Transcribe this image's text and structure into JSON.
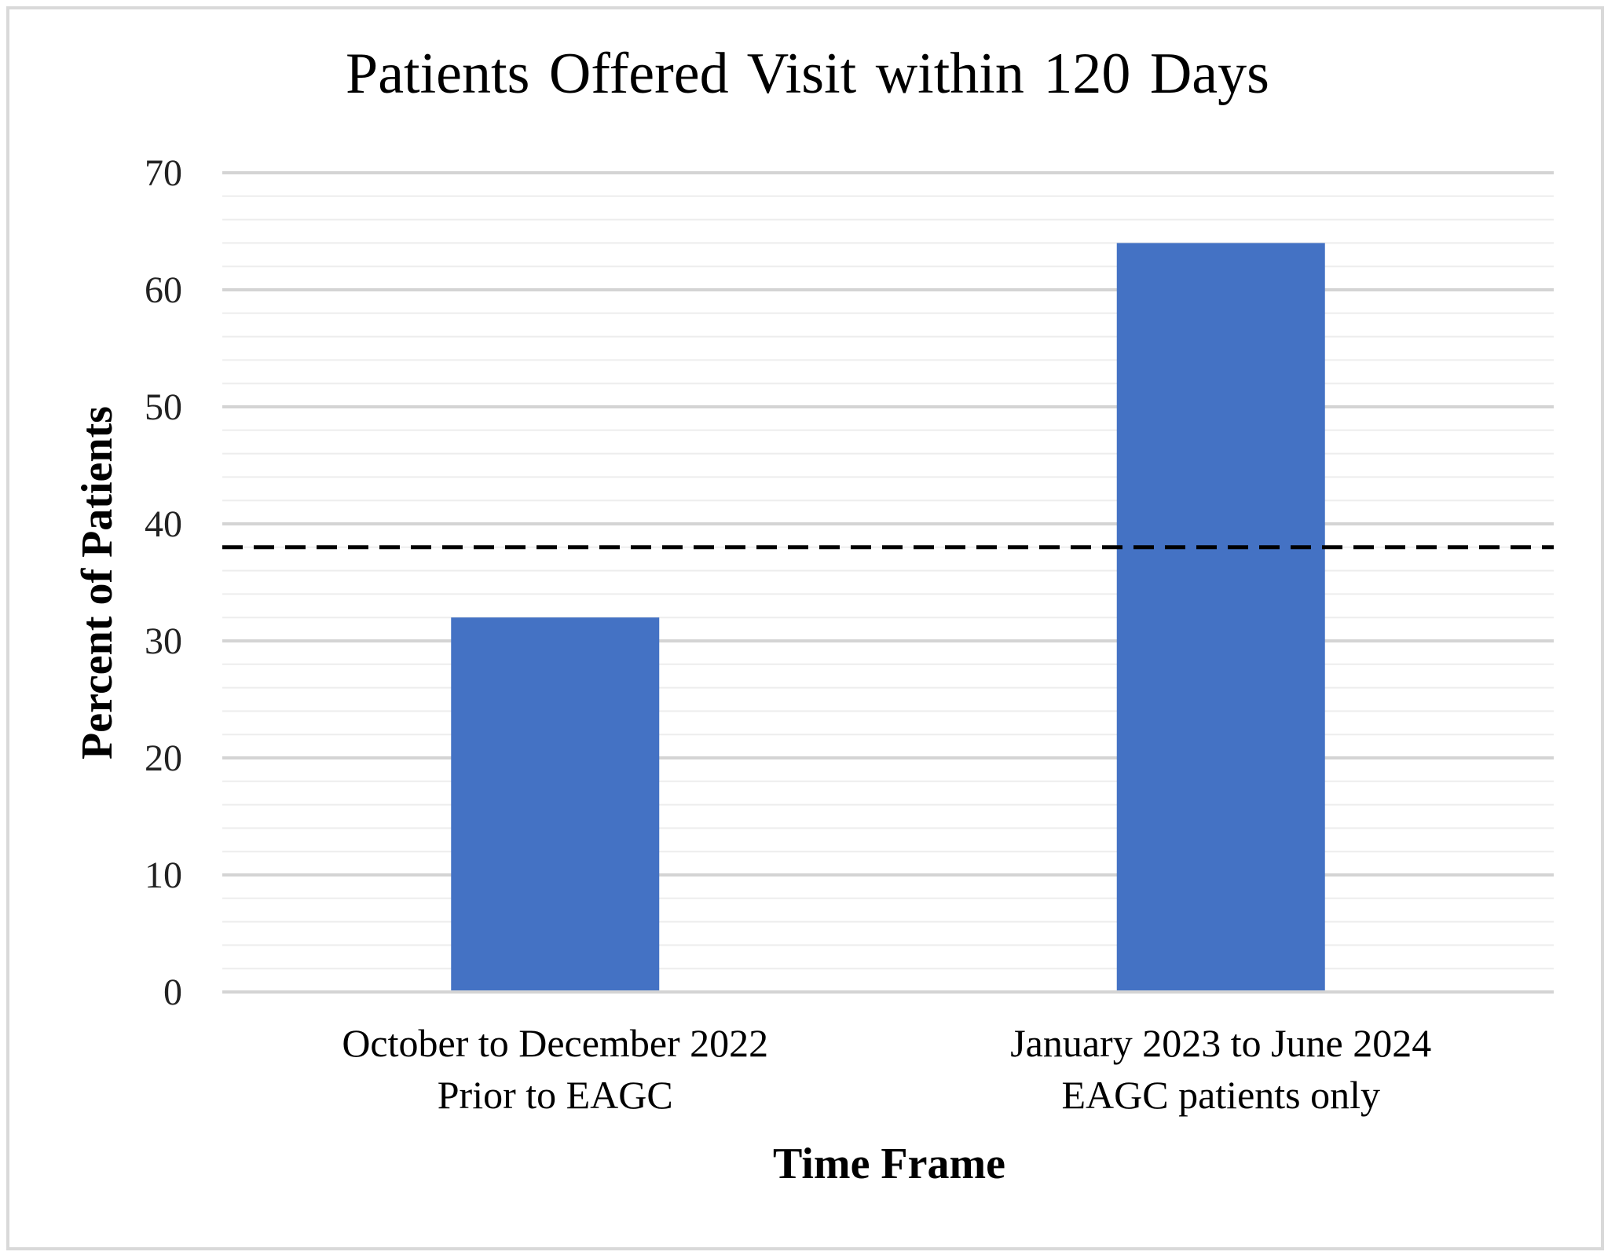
{
  "chart_data": {
    "type": "bar",
    "title": "Patients Offered Visit within 120 Days",
    "xlabel": "Time Frame",
    "ylabel": "Percent of Patients",
    "categories": [
      [
        "October to December 2022",
        "Prior to EAGC"
      ],
      [
        "January 2023 to June 2024",
        "EAGC patients only"
      ]
    ],
    "values": [
      32,
      64
    ],
    "ylim": [
      0,
      70
    ],
    "yticks": [
      0,
      10,
      20,
      30,
      40,
      50,
      60,
      70
    ],
    "minor_step": 2,
    "reference_line": 38,
    "grid": true,
    "legend": "none",
    "colors": {
      "bar": "#4472c4",
      "major_grid": "#d4d4d4",
      "minor_grid": "#ededed",
      "reference_line": "#000000"
    }
  }
}
